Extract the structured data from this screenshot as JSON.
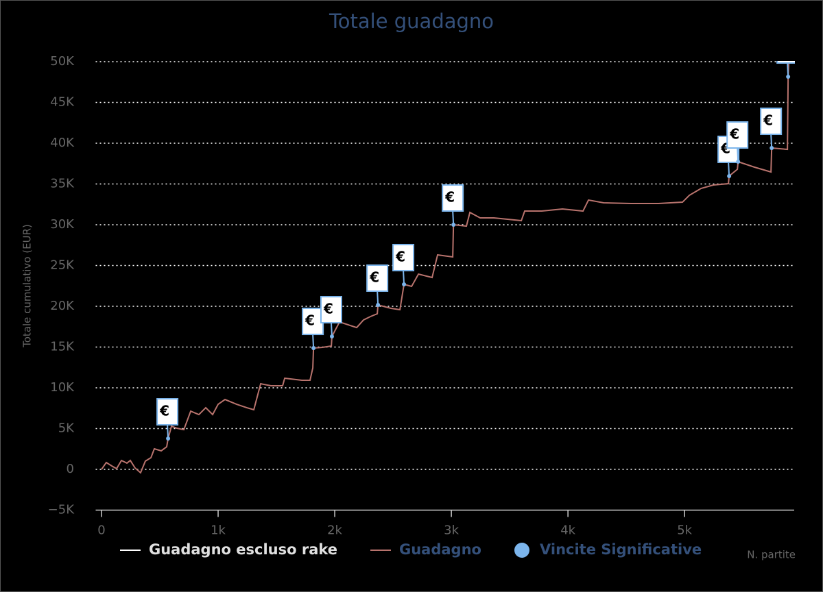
{
  "chart_data": {
    "type": "line",
    "title": "Totale guadagno",
    "y_label": "Totale cumulativo (EUR)",
    "x_label": "N. partite",
    "xlim": [
      -50,
      5940
    ],
    "ylim": [
      -5000,
      50000
    ],
    "xticks": [
      0,
      {
        "value": 1000,
        "label": "1k"
      },
      {
        "value": 2000,
        "label": "2k"
      },
      {
        "value": 3000,
        "label": "3k"
      },
      {
        "value": 4000,
        "label": "4k"
      },
      {
        "value": 5000,
        "label": "5k"
      }
    ],
    "yticks": [
      {
        "value": -5000,
        "label": "−5K"
      },
      0,
      {
        "value": 5000,
        "label": "5K"
      },
      {
        "value": 10000,
        "label": "10K"
      },
      {
        "value": 15000,
        "label": "15K"
      },
      {
        "value": 20000,
        "label": "20K"
      },
      {
        "value": 25000,
        "label": "25K"
      },
      {
        "value": 30000,
        "label": "30K"
      },
      {
        "value": 35000,
        "label": "35K"
      },
      {
        "value": 40000,
        "label": "40K"
      },
      {
        "value": 45000,
        "label": "45K"
      },
      {
        "value": 50000,
        "label": "50K"
      }
    ],
    "grid": true,
    "series": [
      {
        "name": "Guadagno escluso rake",
        "color": "#ffffff",
        "visible": false
      },
      {
        "name": "Guadagno",
        "color": "#b8736d",
        "x": [
          0,
          41,
          88,
          129,
          171,
          218,
          247,
          288,
          335,
          376,
          424,
          453,
          512,
          559,
          571,
          600,
          647,
          706,
          765,
          835,
          894,
          953,
          1000,
          1059,
          1159,
          1247,
          1306,
          1365,
          1453,
          1553,
          1571,
          1718,
          1788,
          1812,
          1818,
          1894,
          1971,
          1976,
          2041,
          2188,
          2247,
          2306,
          2365,
          2371,
          2482,
          2559,
          2594,
          2659,
          2718,
          2835,
          2882,
          3012,
          3018,
          3129,
          3159,
          3247,
          3365,
          3482,
          3600,
          3629,
          3776,
          3953,
          4129,
          4176,
          4306,
          4541,
          4776,
          4982,
          5041,
          5141,
          5247,
          5376,
          5382,
          5453,
          5459,
          5600,
          5741,
          5747,
          5882,
          5888,
          5894
        ],
        "values": [
          0,
          840,
          420,
          80,
          1090,
          760,
          1090,
          170,
          -420,
          1010,
          1430,
          2520,
          2270,
          2770,
          3780,
          5290,
          5040,
          4870,
          7140,
          6720,
          7560,
          6720,
          7980,
          8570,
          7980,
          7560,
          7310,
          10500,
          10250,
          10250,
          11180,
          10920,
          10920,
          12440,
          14870,
          14960,
          15130,
          16300,
          18070,
          17390,
          18320,
          18740,
          19080,
          20170,
          19750,
          19580,
          22690,
          22440,
          23950,
          23530,
          26300,
          26050,
          30000,
          29830,
          31510,
          30840,
          30840,
          30670,
          30500,
          31680,
          31680,
          31930,
          31680,
          33030,
          32690,
          32610,
          32610,
          32770,
          33610,
          34450,
          34870,
          35040,
          35970,
          36810,
          37730,
          37060,
          36470,
          39410,
          39240,
          48150,
          49900
        ]
      },
      {
        "name": "Vincite Significative",
        "type": "flags",
        "color": "#7cb5ec",
        "label": "€",
        "x": [
          571,
          1818,
          1976,
          2371,
          2594,
          3018,
          5382,
          5459,
          5747,
          5888
        ],
        "values": [
          3780,
          14870,
          16300,
          20170,
          22690,
          30000,
          35970,
          37730,
          39410,
          48150
        ]
      }
    ]
  }
}
